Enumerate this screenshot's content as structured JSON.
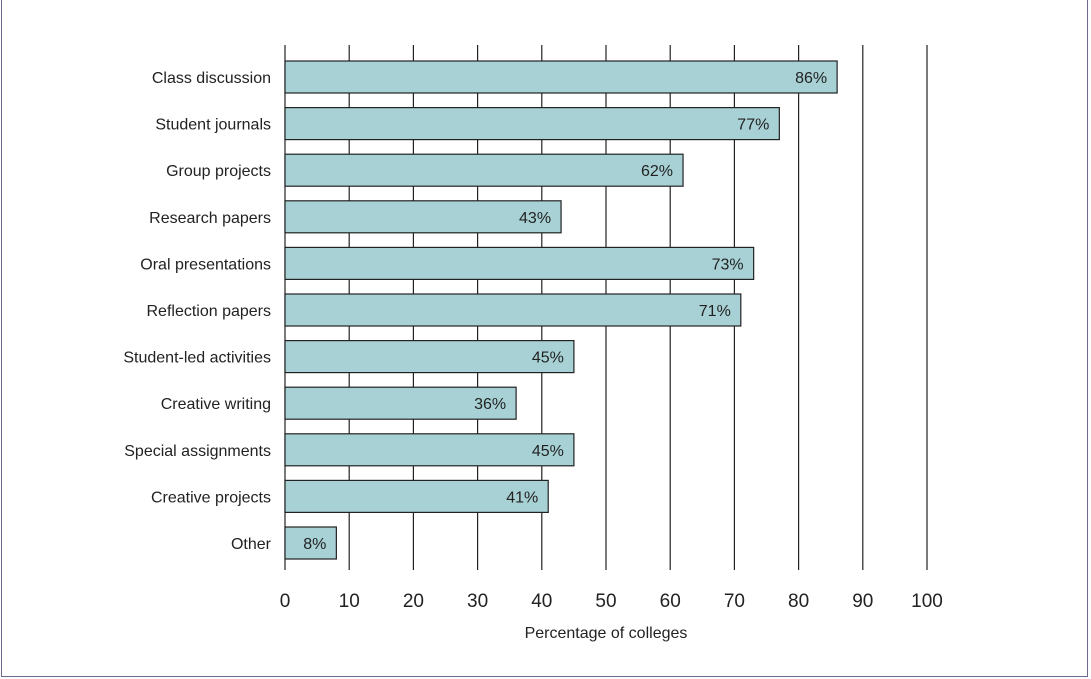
{
  "chart_data": {
    "type": "bar",
    "orientation": "horizontal",
    "categories": [
      "Class discussion",
      "Student journals",
      "Group projects",
      "Research papers",
      "Oral presentations",
      "Reflection papers",
      "Student-led activities",
      "Creative writing",
      "Special assignments",
      "Creative projects",
      "Other"
    ],
    "values": [
      86,
      77,
      62,
      43,
      73,
      71,
      45,
      36,
      45,
      41,
      8
    ],
    "value_labels": [
      "86%",
      "77%",
      "62%",
      "43%",
      "73%",
      "71%",
      "45%",
      "36%",
      "45%",
      "41%",
      "8%"
    ],
    "xlabel": "Percentage of colleges",
    "ylabel": "",
    "xlim": [
      0,
      100
    ],
    "xticks": [
      "0",
      "10",
      "20",
      "30",
      "40",
      "50",
      "60",
      "70",
      "80",
      "90",
      "100"
    ],
    "grid": "vertical",
    "colors": {
      "bar_fill": "#a8d1d5",
      "bar_stroke": "#222222",
      "grid": "#222222",
      "frame": "#6b6a8e"
    }
  }
}
